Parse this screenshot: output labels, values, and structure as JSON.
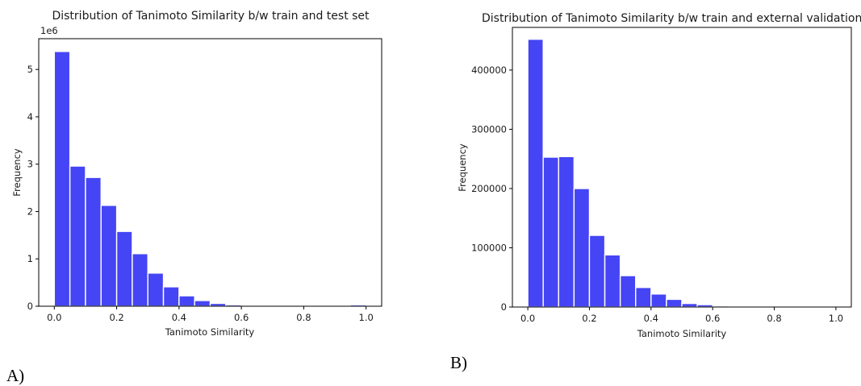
{
  "colors": {
    "bar": "#4545f5",
    "bar_edge": "#ffffff",
    "axis": "#000000"
  },
  "panel_labels": {
    "a": "A)",
    "b": "B)"
  },
  "chart_data": [
    {
      "type": "bar",
      "title": "Distribution of Tanimoto Similarity b/w train and test set",
      "xlabel": "Tanimoto Similarity",
      "ylabel": "Frequency",
      "offset_text": "1e6",
      "xlim": [
        -0.05,
        1.05
      ],
      "ylim": [
        0,
        5.65
      ],
      "bin_width": 0.05,
      "bin_starts": [
        0.0,
        0.05,
        0.1,
        0.15,
        0.2,
        0.25,
        0.3,
        0.35,
        0.4,
        0.45,
        0.5,
        0.55,
        0.6,
        0.65,
        0.7,
        0.75,
        0.8,
        0.85,
        0.9,
        0.95
      ],
      "values": [
        5.38,
        2.96,
        2.72,
        2.13,
        1.58,
        1.11,
        0.7,
        0.41,
        0.22,
        0.12,
        0.06,
        0.03,
        0.02,
        0.015,
        0.01,
        0.005,
        0.003,
        0.002,
        0.001,
        0.03
      ],
      "xticks": [
        0.0,
        0.2,
        0.4,
        0.6,
        0.8,
        1.0
      ],
      "xtick_labels": [
        "0.0",
        "0.2",
        "0.4",
        "0.6",
        "0.8",
        "1.0"
      ],
      "yticks": [
        0,
        1,
        2,
        3,
        4,
        5
      ],
      "ytick_labels": [
        "0",
        "1",
        "2",
        "3",
        "4",
        "5"
      ]
    },
    {
      "type": "bar",
      "title": "Distribution of Tanimoto Similarity b/w train and external validation",
      "xlabel": "Tanimoto Similarity",
      "ylabel": "Frequency",
      "xlim": [
        -0.05,
        1.05
      ],
      "ylim": [
        0,
        472000
      ],
      "bin_width": 0.05,
      "bin_starts": [
        0.0,
        0.05,
        0.1,
        0.15,
        0.2,
        0.25,
        0.3,
        0.35,
        0.4,
        0.45,
        0.5,
        0.55,
        0.6,
        0.65,
        0.7,
        0.75,
        0.8,
        0.85,
        0.9,
        0.95
      ],
      "values": [
        452000,
        253000,
        254000,
        200000,
        121000,
        88000,
        53000,
        33000,
        22000,
        13000,
        6000,
        4000,
        2000,
        1500,
        1000,
        500,
        300,
        200,
        100,
        1500
      ],
      "xticks": [
        0.0,
        0.2,
        0.4,
        0.6,
        0.8,
        1.0
      ],
      "xtick_labels": [
        "0.0",
        "0.2",
        "0.4",
        "0.6",
        "0.8",
        "1.0"
      ],
      "yticks": [
        0,
        100000,
        200000,
        300000,
        400000
      ],
      "ytick_labels": [
        "0",
        "100000",
        "200000",
        "300000",
        "400000"
      ]
    }
  ]
}
